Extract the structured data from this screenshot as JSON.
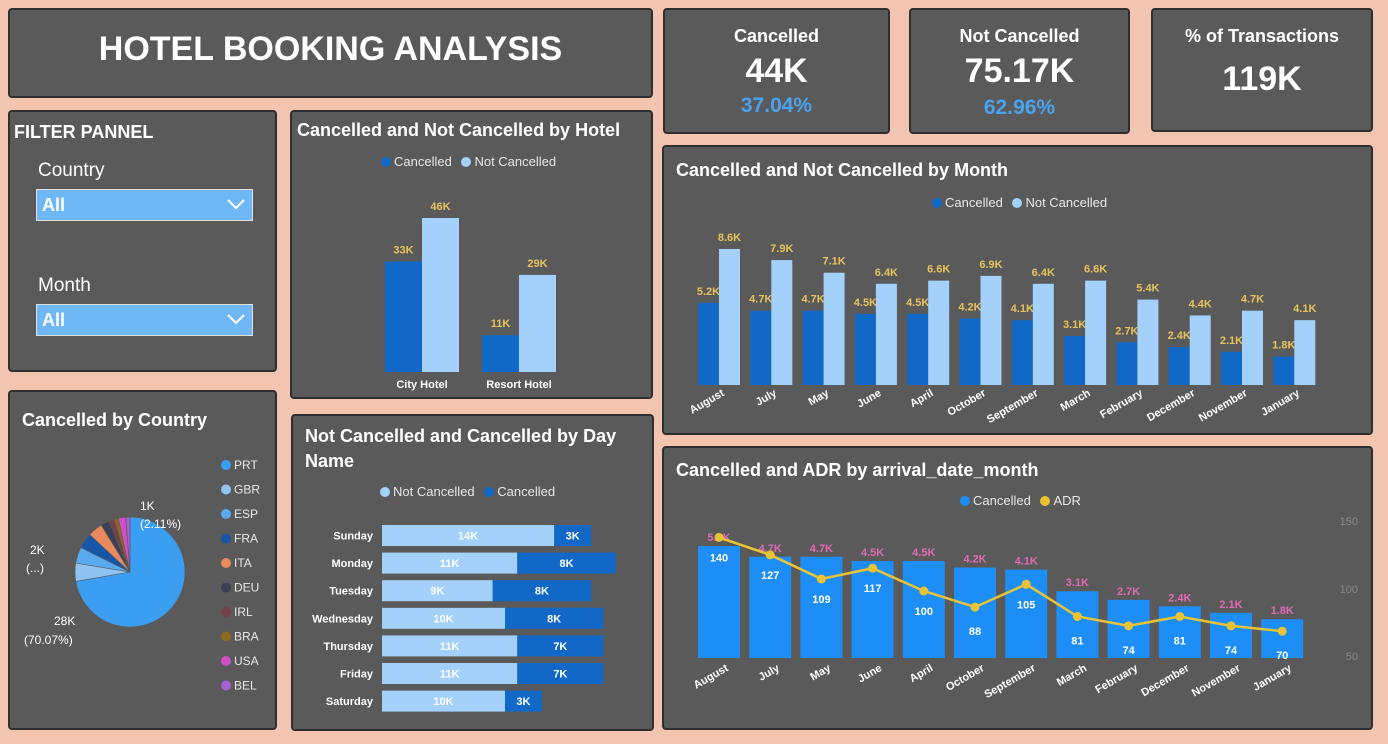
{
  "title": "HOTEL BOOKING ANALYSIS",
  "kpis": {
    "cancelled": {
      "label": "Cancelled",
      "value": "44K",
      "pct": "37.04%"
    },
    "not_cancelled": {
      "label": "Not Cancelled",
      "value": "75.17K",
      "pct": "62.96%"
    },
    "transactions": {
      "label": "% of Transactions",
      "value": "119K"
    }
  },
  "filter": {
    "title": "FILTER PANNEL",
    "country_label": "Country",
    "country_value": "All",
    "month_label": "Month",
    "month_value": "All"
  },
  "colors": {
    "cancelled": "#1168c6",
    "not_cancelled": "#a3d1fb",
    "adr": "#e8c435",
    "value_label_gold": "#e8c35c",
    "value_label_pink": "#e06ab5",
    "card_bg": "#5a5a5a",
    "page_bg": "#f3c4b0"
  },
  "chart_data": [
    {
      "id": "hotel",
      "type": "bar",
      "title": "Cancelled and Not Cancelled by Hotel",
      "categories": [
        "City Hotel",
        "Resort Hotel"
      ],
      "series": [
        {
          "name": "Cancelled",
          "values": [
            33,
            11
          ],
          "labels": [
            "33K",
            "11K"
          ]
        },
        {
          "name": "Not Cancelled",
          "values": [
            46,
            29
          ],
          "labels": [
            "46K",
            "29K"
          ]
        }
      ]
    },
    {
      "id": "month",
      "type": "bar",
      "title": "Cancelled and Not Cancelled by Month",
      "categories": [
        "August",
        "July",
        "May",
        "June",
        "April",
        "October",
        "September",
        "March",
        "February",
        "December",
        "November",
        "January"
      ],
      "series": [
        {
          "name": "Cancelled",
          "values": [
            5.2,
            4.7,
            4.7,
            4.5,
            4.5,
            4.2,
            4.1,
            3.1,
            2.7,
            2.4,
            2.1,
            1.8
          ],
          "labels": [
            "5.2K",
            "4.7K",
            "4.7K",
            "4.5K",
            "4.5K",
            "4.2K",
            "4.1K",
            "3.1K",
            "2.7K",
            "2.4K",
            "2.1K",
            "1.8K"
          ]
        },
        {
          "name": "Not Cancelled",
          "values": [
            8.6,
            7.9,
            7.1,
            6.4,
            6.6,
            6.9,
            6.4,
            6.6,
            5.4,
            4.4,
            4.7,
            4.1
          ],
          "labels": [
            "8.6K",
            "7.9K",
            "7.1K",
            "6.4K",
            "6.6K",
            "6.9K",
            "6.4K",
            "6.6K",
            "5.4K",
            "4.4K",
            "4.7K",
            "4.1K"
          ]
        }
      ]
    },
    {
      "id": "day",
      "type": "bar",
      "orientation": "horizontal-stacked",
      "title": "Not Cancelled and Cancelled by Day Name",
      "categories": [
        "Sunday",
        "Monday",
        "Tuesday",
        "Wednesday",
        "Thursday",
        "Friday",
        "Saturday"
      ],
      "series": [
        {
          "name": "Not Cancelled",
          "values": [
            14,
            11,
            9,
            10,
            11,
            11,
            10
          ],
          "labels": [
            "14K",
            "11K",
            "9K",
            "10K",
            "11K",
            "11K",
            "10K"
          ]
        },
        {
          "name": "Cancelled",
          "values": [
            3,
            8,
            8,
            8,
            7,
            7,
            3
          ],
          "labels": [
            "3K",
            "8K",
            "8K",
            "8K",
            "7K",
            "7K",
            "3K"
          ]
        }
      ]
    },
    {
      "id": "country",
      "type": "pie",
      "title": "Cancelled by Country",
      "legend": [
        "PRT",
        "GBR",
        "ESP",
        "FRA",
        "ITA",
        "DEU",
        "IRL",
        "BRA",
        "USA",
        "BEL"
      ],
      "legend_colors": [
        "#3a9ff2",
        "#8ec3f2",
        "#5aaaf0",
        "#1656a8",
        "#ea8a5c",
        "#3c3f56",
        "#74404a",
        "#8c6a1e",
        "#cf4fc4",
        "#a45fd0"
      ],
      "values": [
        70.07,
        5.2,
        4.6,
        4.4,
        4.2,
        2.4,
        1.6,
        1.2,
        2.11,
        1.2
      ],
      "data_labels": [
        {
          "value": "28K",
          "pct": "(70.07%)"
        },
        {
          "value": "2K",
          "pct": "(...)"
        },
        {
          "value": "1K",
          "pct": "(2.11%)"
        }
      ]
    },
    {
      "id": "adr",
      "type": "bar+line",
      "title": "Cancelled and ADR by arrival_date_month",
      "categories": [
        "August",
        "July",
        "May",
        "June",
        "April",
        "October",
        "September",
        "March",
        "February",
        "December",
        "November",
        "January"
      ],
      "series": [
        {
          "name": "Cancelled",
          "values": [
            5.2,
            4.7,
            4.7,
            4.5,
            4.5,
            4.2,
            4.1,
            3.1,
            2.7,
            2.4,
            2.1,
            1.8
          ],
          "labels": [
            "5.2K",
            "4.7K",
            "4.7K",
            "4.5K",
            "4.5K",
            "4.2K",
            "4.1K",
            "3.1K",
            "2.7K",
            "2.4K",
            "2.1K",
            "1.8K"
          ]
        },
        {
          "name": "ADR",
          "values": [
            140,
            127,
            109,
            117,
            100,
            88,
            105,
            81,
            74,
            81,
            74,
            70
          ],
          "labels": [
            "140",
            "127",
            "109",
            "117",
            "100",
            "88",
            "105",
            "81",
            "74",
            "81",
            "74",
            "70"
          ]
        }
      ],
      "y2_ticks": [
        "150",
        "100",
        "50"
      ]
    }
  ]
}
